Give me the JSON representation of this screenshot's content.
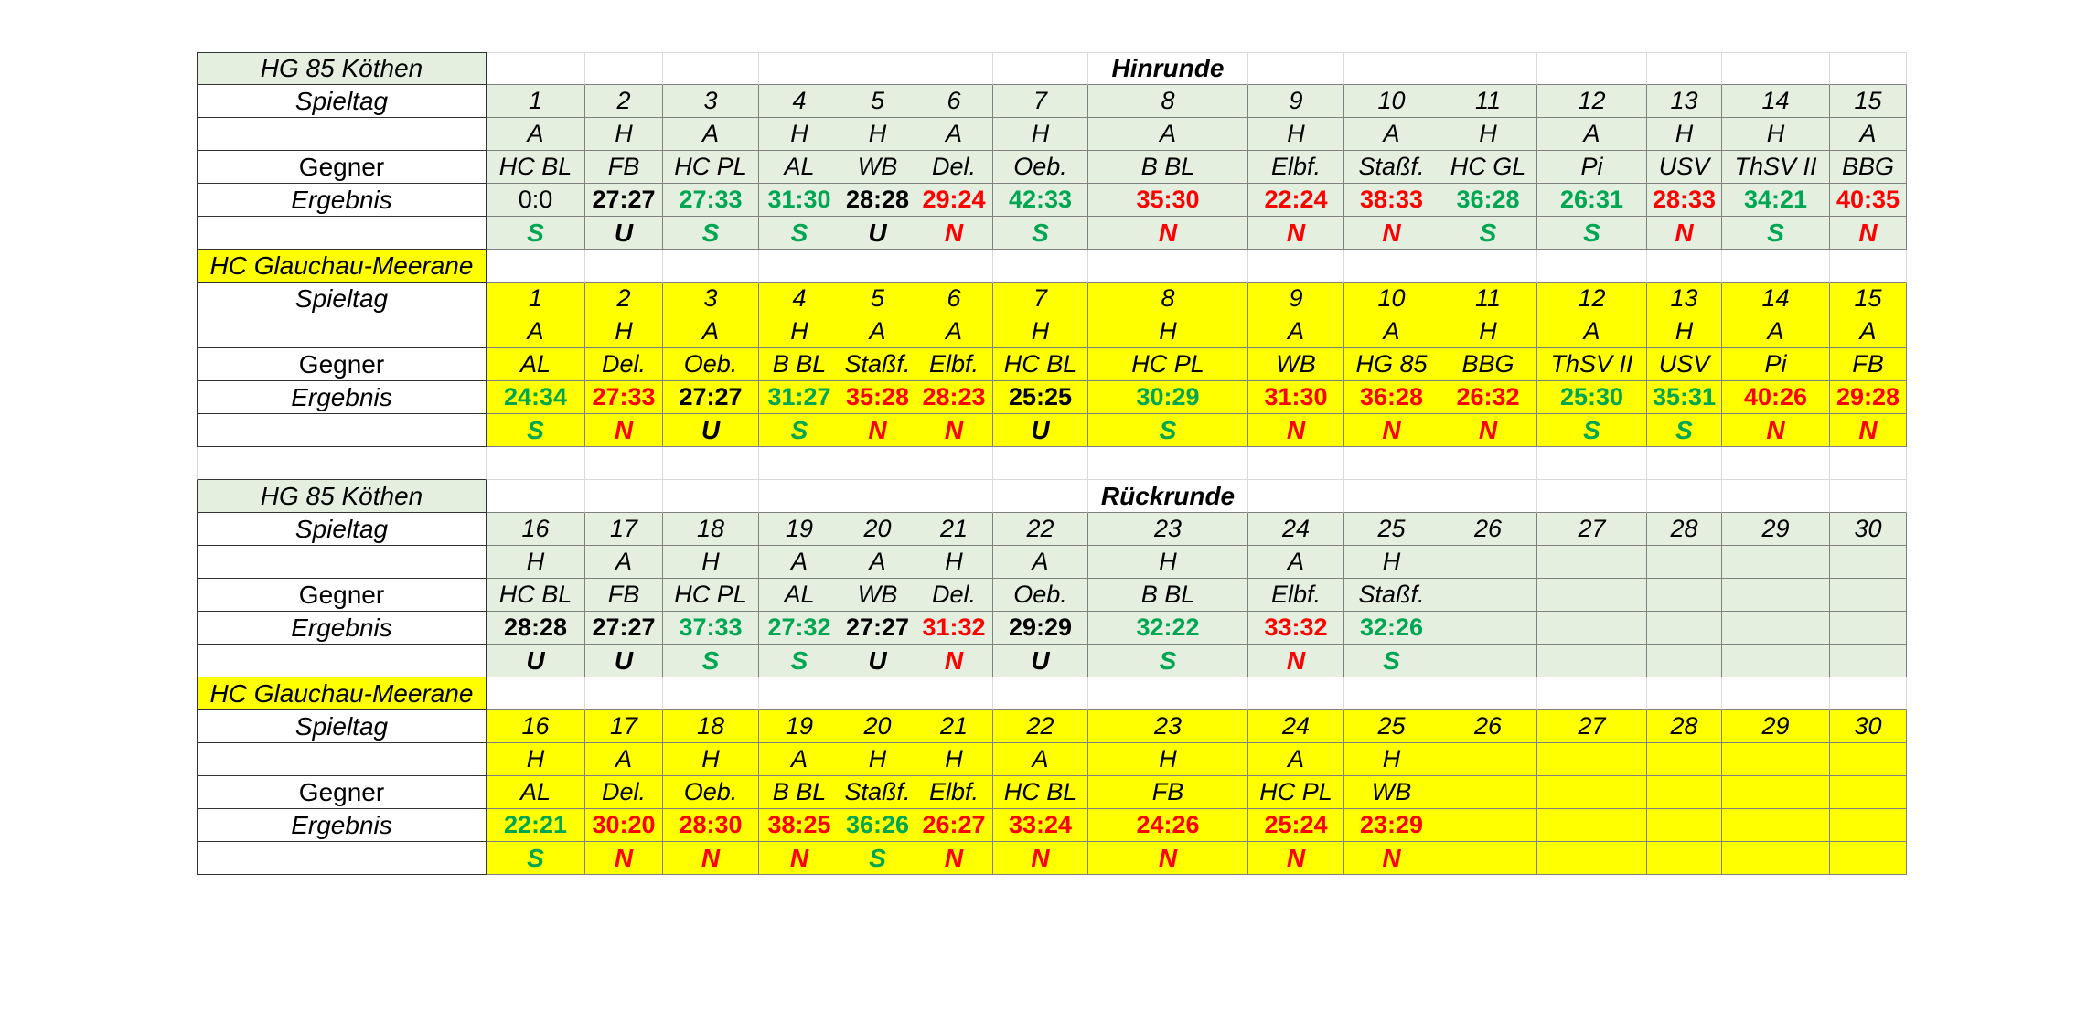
{
  "colors": {
    "green_fill": "#e5efe0",
    "yellow_fill": "#ffff00",
    "win_text": "#00a651",
    "loss_text": "#ff0000",
    "draw_text": "#000000"
  },
  "labels": {
    "spieltag": "Spieltag",
    "gegner": "Gegner",
    "ergebnis": "Ergebnis"
  },
  "sections": [
    {
      "team": "HG 85 Köthen",
      "round": "Hinrunde",
      "fill": "green",
      "matchdays": [
        "1",
        "2",
        "3",
        "4",
        "5",
        "6",
        "7",
        "8",
        "9",
        "10",
        "11",
        "12",
        "13",
        "14",
        "15"
      ],
      "venues": [
        "A",
        "H",
        "A",
        "H",
        "H",
        "A",
        "H",
        "A",
        "H",
        "A",
        "H",
        "A",
        "H",
        "H",
        "A"
      ],
      "opponents": [
        "HC BL",
        "FB",
        "HC PL",
        "AL",
        "WB",
        "Del.",
        "Oeb.",
        "B BL",
        "Elbf.",
        "Staßf.",
        "HC GL",
        "Pi",
        "USV",
        "ThSV II",
        "BBG"
      ],
      "results": [
        {
          "v": "0:0",
          "c": "draw",
          "plain": true
        },
        {
          "v": "27:27",
          "c": "draw"
        },
        {
          "v": "27:33",
          "c": "win"
        },
        {
          "v": "31:30",
          "c": "win"
        },
        {
          "v": "28:28",
          "c": "draw"
        },
        {
          "v": "29:24",
          "c": "loss"
        },
        {
          "v": "42:33",
          "c": "win"
        },
        {
          "v": "35:30",
          "c": "loss"
        },
        {
          "v": "22:24",
          "c": "loss"
        },
        {
          "v": "38:33",
          "c": "loss"
        },
        {
          "v": "36:28",
          "c": "win"
        },
        {
          "v": "26:31",
          "c": "win"
        },
        {
          "v": "28:33",
          "c": "loss"
        },
        {
          "v": "34:21",
          "c": "win"
        },
        {
          "v": "40:35",
          "c": "loss"
        }
      ],
      "outcomes": [
        {
          "v": "S",
          "c": "win"
        },
        {
          "v": "U",
          "c": "draw"
        },
        {
          "v": "S",
          "c": "win"
        },
        {
          "v": "S",
          "c": "win"
        },
        {
          "v": "U",
          "c": "draw"
        },
        {
          "v": "N",
          "c": "loss"
        },
        {
          "v": "S",
          "c": "win"
        },
        {
          "v": "N",
          "c": "loss"
        },
        {
          "v": "N",
          "c": "loss"
        },
        {
          "v": "N",
          "c": "loss"
        },
        {
          "v": "S",
          "c": "win"
        },
        {
          "v": "S",
          "c": "win"
        },
        {
          "v": "N",
          "c": "loss"
        },
        {
          "v": "S",
          "c": "win"
        },
        {
          "v": "N",
          "c": "loss"
        }
      ]
    },
    {
      "team": "HC Glauchau-Meerane",
      "round": "",
      "fill": "yellow",
      "matchdays": [
        "1",
        "2",
        "3",
        "4",
        "5",
        "6",
        "7",
        "8",
        "9",
        "10",
        "11",
        "12",
        "13",
        "14",
        "15"
      ],
      "venues": [
        "A",
        "H",
        "A",
        "H",
        "A",
        "A",
        "H",
        "H",
        "A",
        "A",
        "H",
        "A",
        "H",
        "A",
        "A"
      ],
      "opponents": [
        "AL",
        "Del.",
        "Oeb.",
        "B BL",
        "Staßf.",
        "Elbf.",
        "HC BL",
        "HC PL",
        "WB",
        "HG 85",
        "BBG",
        "ThSV II",
        "USV",
        "Pi",
        "FB"
      ],
      "results": [
        {
          "v": "24:34",
          "c": "win"
        },
        {
          "v": "27:33",
          "c": "loss"
        },
        {
          "v": "27:27",
          "c": "draw"
        },
        {
          "v": "31:27",
          "c": "win"
        },
        {
          "v": "35:28",
          "c": "loss"
        },
        {
          "v": "28:23",
          "c": "loss"
        },
        {
          "v": "25:25",
          "c": "draw"
        },
        {
          "v": "30:29",
          "c": "win"
        },
        {
          "v": "31:30",
          "c": "loss"
        },
        {
          "v": "36:28",
          "c": "loss"
        },
        {
          "v": "26:32",
          "c": "loss"
        },
        {
          "v": "25:30",
          "c": "win"
        },
        {
          "v": "35:31",
          "c": "win"
        },
        {
          "v": "40:26",
          "c": "loss"
        },
        {
          "v": "29:28",
          "c": "loss"
        }
      ],
      "outcomes": [
        {
          "v": "S",
          "c": "win"
        },
        {
          "v": "N",
          "c": "loss"
        },
        {
          "v": "U",
          "c": "draw"
        },
        {
          "v": "S",
          "c": "win"
        },
        {
          "v": "N",
          "c": "loss"
        },
        {
          "v": "N",
          "c": "loss"
        },
        {
          "v": "U",
          "c": "draw"
        },
        {
          "v": "S",
          "c": "win"
        },
        {
          "v": "N",
          "c": "loss"
        },
        {
          "v": "N",
          "c": "loss"
        },
        {
          "v": "N",
          "c": "loss"
        },
        {
          "v": "S",
          "c": "win"
        },
        {
          "v": "S",
          "c": "win"
        },
        {
          "v": "N",
          "c": "loss"
        },
        {
          "v": "N",
          "c": "loss"
        }
      ]
    },
    {
      "team": "HG 85 Köthen",
      "round": "Rückrunde",
      "fill": "green",
      "matchdays": [
        "16",
        "17",
        "18",
        "19",
        "20",
        "21",
        "22",
        "23",
        "24",
        "25",
        "26",
        "27",
        "28",
        "29",
        "30"
      ],
      "venues": [
        "H",
        "A",
        "H",
        "A",
        "A",
        "H",
        "A",
        "H",
        "A",
        "H",
        "",
        "",
        "",
        "",
        ""
      ],
      "opponents": [
        "HC BL",
        "FB",
        "HC PL",
        "AL",
        "WB",
        "Del.",
        "Oeb.",
        "B BL",
        "Elbf.",
        "Staßf.",
        "",
        "",
        "",
        "",
        ""
      ],
      "results": [
        {
          "v": "28:28",
          "c": "draw"
        },
        {
          "v": "27:27",
          "c": "draw"
        },
        {
          "v": "37:33",
          "c": "win"
        },
        {
          "v": "27:32",
          "c": "win"
        },
        {
          "v": "27:27",
          "c": "draw"
        },
        {
          "v": "31:32",
          "c": "loss"
        },
        {
          "v": "29:29",
          "c": "draw"
        },
        {
          "v": "32:22",
          "c": "win"
        },
        {
          "v": "33:32",
          "c": "loss"
        },
        {
          "v": "32:26",
          "c": "win"
        },
        {
          "v": "",
          "c": "draw"
        },
        {
          "v": "",
          "c": "draw"
        },
        {
          "v": "",
          "c": "draw"
        },
        {
          "v": "",
          "c": "draw"
        },
        {
          "v": "",
          "c": "draw"
        }
      ],
      "outcomes": [
        {
          "v": "U",
          "c": "draw"
        },
        {
          "v": "U",
          "c": "draw"
        },
        {
          "v": "S",
          "c": "win"
        },
        {
          "v": "S",
          "c": "win"
        },
        {
          "v": "U",
          "c": "draw"
        },
        {
          "v": "N",
          "c": "loss"
        },
        {
          "v": "U",
          "c": "draw"
        },
        {
          "v": "S",
          "c": "win"
        },
        {
          "v": "N",
          "c": "loss"
        },
        {
          "v": "S",
          "c": "win"
        },
        {
          "v": "",
          "c": "draw"
        },
        {
          "v": "",
          "c": "draw"
        },
        {
          "v": "",
          "c": "draw"
        },
        {
          "v": "",
          "c": "draw"
        },
        {
          "v": "",
          "c": "draw"
        }
      ]
    },
    {
      "team": "HC Glauchau-Meerane",
      "round": "",
      "fill": "yellow",
      "matchdays": [
        "16",
        "17",
        "18",
        "19",
        "20",
        "21",
        "22",
        "23",
        "24",
        "25",
        "26",
        "27",
        "28",
        "29",
        "30"
      ],
      "venues": [
        "H",
        "A",
        "H",
        "A",
        "H",
        "H",
        "A",
        "H",
        "A",
        "H",
        "",
        "",
        "",
        "",
        ""
      ],
      "opponents": [
        "AL",
        "Del.",
        "Oeb.",
        "B BL",
        "Staßf.",
        "Elbf.",
        "HC BL",
        "FB",
        "HC PL",
        "WB",
        "",
        "",
        "",
        "",
        ""
      ],
      "results": [
        {
          "v": "22:21",
          "c": "win"
        },
        {
          "v": "30:20",
          "c": "loss"
        },
        {
          "v": "28:30",
          "c": "loss"
        },
        {
          "v": "38:25",
          "c": "loss"
        },
        {
          "v": "36:26",
          "c": "win"
        },
        {
          "v": "26:27",
          "c": "loss"
        },
        {
          "v": "33:24",
          "c": "loss"
        },
        {
          "v": "24:26",
          "c": "loss"
        },
        {
          "v": "25:24",
          "c": "loss"
        },
        {
          "v": "23:29",
          "c": "loss"
        },
        {
          "v": "",
          "c": "draw"
        },
        {
          "v": "",
          "c": "draw"
        },
        {
          "v": "",
          "c": "draw"
        },
        {
          "v": "",
          "c": "draw"
        },
        {
          "v": "",
          "c": "draw"
        }
      ],
      "outcomes": [
        {
          "v": "S",
          "c": "win"
        },
        {
          "v": "N",
          "c": "loss"
        },
        {
          "v": "N",
          "c": "loss"
        },
        {
          "v": "N",
          "c": "loss"
        },
        {
          "v": "S",
          "c": "win"
        },
        {
          "v": "N",
          "c": "loss"
        },
        {
          "v": "N",
          "c": "loss"
        },
        {
          "v": "N",
          "c": "loss"
        },
        {
          "v": "N",
          "c": "loss"
        },
        {
          "v": "N",
          "c": "loss"
        },
        {
          "v": "",
          "c": "draw"
        },
        {
          "v": "",
          "c": "draw"
        },
        {
          "v": "",
          "c": "draw"
        },
        {
          "v": "",
          "c": "draw"
        },
        {
          "v": "",
          "c": "draw"
        }
      ]
    }
  ]
}
